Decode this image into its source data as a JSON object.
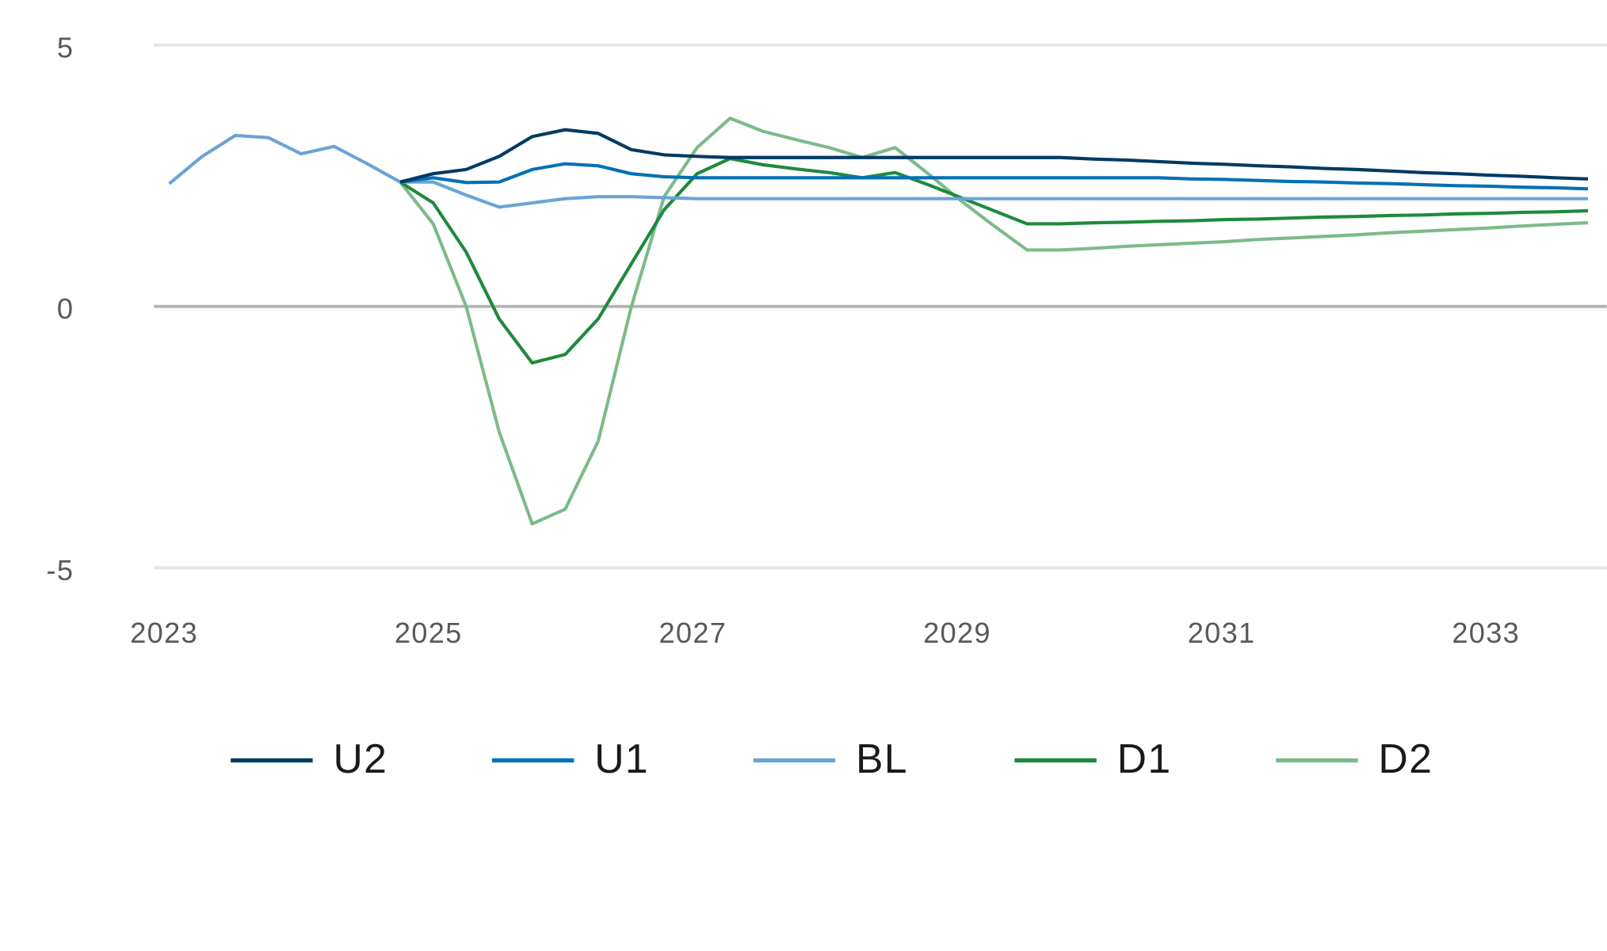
{
  "chart_data": {
    "type": "line",
    "title": "",
    "xlabel": "",
    "ylabel": "",
    "ylim": [
      -5,
      5
    ],
    "yticks": [
      "5",
      "0",
      "-5"
    ],
    "ytick_values": [
      5,
      0,
      -5
    ],
    "grid": true,
    "legend_position": "bottom",
    "x_tick_labels": [
      "2023",
      "2025",
      "2027",
      "2029",
      "2031",
      "2033"
    ],
    "x": [
      "2023Q1",
      "2023Q2",
      "2023Q3",
      "2023Q4",
      "2024Q1",
      "2024Q2",
      "2024Q3",
      "2024Q4",
      "2025Q1",
      "2025Q2",
      "2025Q3",
      "2025Q4",
      "2026Q1",
      "2026Q2",
      "2026Q3",
      "2026Q4",
      "2027Q1",
      "2027Q2",
      "2027Q3",
      "2027Q4",
      "2028Q1",
      "2028Q2",
      "2028Q3",
      "2028Q4",
      "2029Q1",
      "2029Q2",
      "2029Q3",
      "2029Q4",
      "2030Q1",
      "2030Q2",
      "2030Q3",
      "2030Q4",
      "2031Q1",
      "2031Q2",
      "2031Q3",
      "2031Q4",
      "2032Q1",
      "2032Q2",
      "2032Q3",
      "2032Q4",
      "2033Q1",
      "2033Q2",
      "2033Q3",
      "2033Q4"
    ],
    "series": [
      {
        "name": "U2",
        "color": "#003a63",
        "values": [
          null,
          null,
          null,
          null,
          null,
          null,
          null,
          2.38,
          2.54,
          2.62,
          2.87,
          3.25,
          3.38,
          3.31,
          3.0,
          2.9,
          2.87,
          2.85,
          2.85,
          2.85,
          2.85,
          2.85,
          2.85,
          2.85,
          2.85,
          2.85,
          2.85,
          2.85,
          2.82,
          2.8,
          2.77,
          2.74,
          2.72,
          2.69,
          2.67,
          2.64,
          2.62,
          2.59,
          2.56,
          2.54,
          2.51,
          2.49,
          2.46,
          2.44
        ]
      },
      {
        "name": "U1",
        "color": "#0071b3",
        "values": [
          null,
          null,
          null,
          null,
          null,
          null,
          null,
          2.38,
          2.46,
          2.37,
          2.38,
          2.62,
          2.73,
          2.69,
          2.54,
          2.48,
          2.46,
          2.46,
          2.46,
          2.46,
          2.46,
          2.46,
          2.46,
          2.46,
          2.46,
          2.46,
          2.46,
          2.46,
          2.46,
          2.46,
          2.46,
          2.44,
          2.43,
          2.41,
          2.39,
          2.38,
          2.36,
          2.35,
          2.33,
          2.31,
          2.3,
          2.28,
          2.27,
          2.25
        ]
      },
      {
        "name": "BL",
        "color": "#6ba3d6",
        "values": [
          2.35,
          2.87,
          3.27,
          3.23,
          2.92,
          3.06,
          2.73,
          2.38,
          2.38,
          2.13,
          1.9,
          1.98,
          2.06,
          2.1,
          2.1,
          2.08,
          2.06,
          2.06,
          2.06,
          2.06,
          2.06,
          2.06,
          2.06,
          2.06,
          2.06,
          2.06,
          2.06,
          2.06,
          2.06,
          2.06,
          2.06,
          2.06,
          2.06,
          2.06,
          2.06,
          2.06,
          2.06,
          2.06,
          2.06,
          2.06,
          2.06,
          2.06,
          2.06,
          2.06
        ]
      },
      {
        "name": "D1",
        "color": "#1e8a3c",
        "values": [
          null,
          null,
          null,
          null,
          null,
          null,
          null,
          2.38,
          1.98,
          1.04,
          -0.24,
          -1.08,
          -0.92,
          -0.24,
          0.81,
          1.85,
          2.54,
          2.83,
          2.71,
          2.63,
          2.56,
          2.46,
          2.56,
          2.33,
          2.08,
          1.83,
          1.58,
          1.58,
          1.6,
          1.61,
          1.63,
          1.64,
          1.66,
          1.67,
          1.69,
          1.71,
          1.72,
          1.74,
          1.75,
          1.77,
          1.78,
          1.8,
          1.81,
          1.83
        ]
      },
      {
        "name": "D2",
        "color": "#7dba8a",
        "values": [
          null,
          null,
          null,
          null,
          null,
          null,
          null,
          2.38,
          1.58,
          0.0,
          -2.4,
          -4.16,
          -3.88,
          -2.58,
          -0.02,
          2.1,
          3.04,
          3.6,
          3.35,
          3.19,
          3.04,
          2.85,
          3.04,
          2.54,
          2.02,
          1.54,
          1.08,
          1.08,
          1.11,
          1.15,
          1.18,
          1.21,
          1.24,
          1.28,
          1.31,
          1.34,
          1.37,
          1.41,
          1.44,
          1.47,
          1.5,
          1.54,
          1.57,
          1.6
        ]
      }
    ],
    "gridline_color": "#e6e6e6",
    "zero_line_color": "#b3b3b3"
  }
}
